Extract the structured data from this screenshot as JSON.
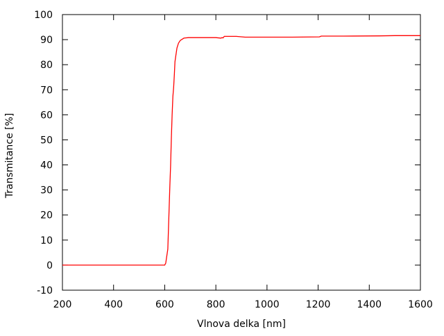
{
  "chart_data": {
    "type": "line",
    "title": "",
    "xlabel": "Vlnova delka [nm]",
    "ylabel": "Transmitance [%]",
    "xlim": [
      200,
      1600
    ],
    "ylim": [
      -10,
      100
    ],
    "xticks": [
      200,
      400,
      600,
      800,
      1000,
      1200,
      1400,
      1600
    ],
    "yticks": [
      -10,
      0,
      10,
      20,
      30,
      40,
      50,
      60,
      70,
      80,
      90,
      100
    ],
    "grid": false,
    "legend": "none",
    "series": [
      {
        "color": "#ff0000",
        "x": [
          200,
          400,
          600,
          604,
          612,
          616,
          620,
          623,
          626,
          629,
          632,
          635,
          638,
          640,
          644,
          648,
          654,
          661,
          675,
          693,
          800,
          820,
          824,
          828,
          833,
          880,
          914,
          1000,
          1100,
          1205,
          1212,
          1300,
          1440,
          1500,
          1600
        ],
        "y": [
          0,
          0,
          0,
          0.8,
          6.4,
          18.4,
          31.3,
          39.6,
          50.7,
          59.9,
          67.3,
          71,
          76.5,
          81.2,
          83.9,
          86.7,
          88.6,
          89.7,
          90.6,
          90.8,
          90.8,
          90.6,
          90.8,
          90.7,
          91.3,
          91.3,
          91.0,
          91.0,
          91.0,
          91.1,
          91.4,
          91.4,
          91.5,
          91.6,
          91.6
        ]
      }
    ]
  }
}
